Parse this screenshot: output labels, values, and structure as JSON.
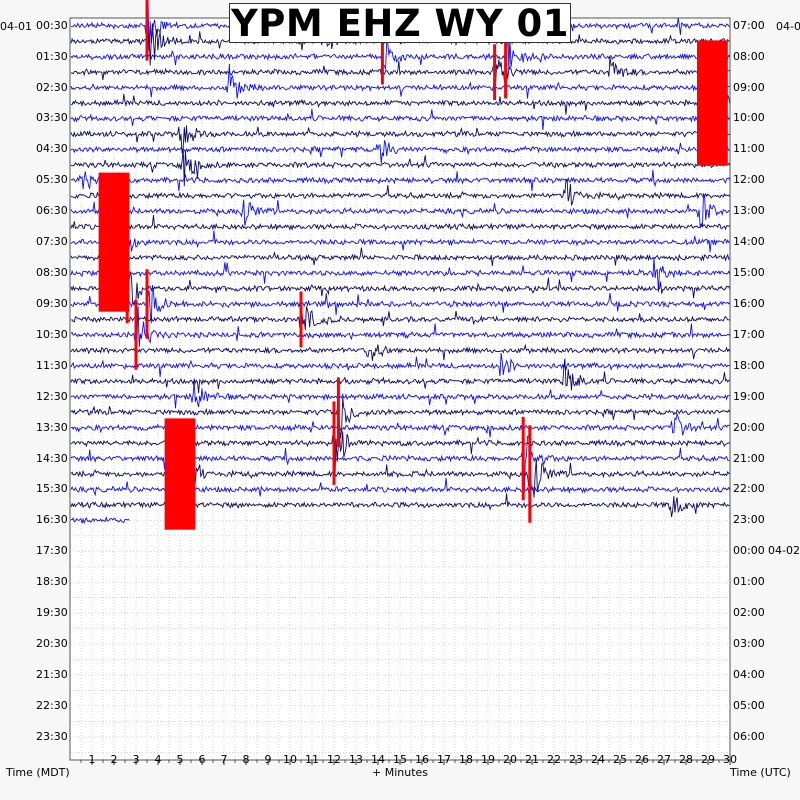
{
  "title": "YPM EHZ WY 01",
  "labels": {
    "left_date": "04-01",
    "right_date": "04-02",
    "left_axis_title": "Time (MDT)",
    "right_axis_title": "Time (UTC)",
    "x_axis_title": "+ Minutes"
  },
  "colors": {
    "trace_dark": "#0a0a66",
    "trace_blue": "#1010ee",
    "clip": "#ff0000",
    "grid": "#b8b8b8",
    "background": "#f7f7f7",
    "plot_background": "#ffffff"
  },
  "chart_data": {
    "type": "helicorder",
    "station": "YPM EHZ WY 01",
    "x_ticks": [
      "1",
      "2",
      "3",
      "4",
      "5",
      "6",
      "7",
      "8",
      "9",
      "10",
      "11",
      "12",
      "13",
      "14",
      "15",
      "16",
      "17",
      "18",
      "19",
      "20",
      "21",
      "22",
      "23",
      "24",
      "25",
      "26",
      "27",
      "28",
      "29",
      "30"
    ],
    "xlim": [
      0,
      30
    ],
    "left_hour_labels": [
      "00:30",
      "01:30",
      "02:30",
      "03:30",
      "04:30",
      "05:30",
      "06:30",
      "07:30",
      "08:30",
      "09:30",
      "10:30",
      "11:30",
      "12:30",
      "13:30",
      "14:30",
      "15:30",
      "16:30",
      "17:30",
      "18:30",
      "19:30",
      "20:30",
      "21:30",
      "22:30",
      "23:30"
    ],
    "right_hour_labels": [
      "07:00",
      "08:00",
      "09:00",
      "10:00",
      "11:00",
      "12:00",
      "13:00",
      "14:00",
      "15:00",
      "16:00",
      "17:00",
      "18:00",
      "19:00",
      "20:00",
      "21:00",
      "22:00",
      "23:00",
      "00:00",
      "01:00",
      "02:00",
      "03:00",
      "04:00",
      "05:00",
      "06:00"
    ],
    "trace_rows_total": 48,
    "trace_rows_filled": 33,
    "last_row_end_minute": 2.7,
    "events": [
      {
        "row": 0,
        "minute": 3.5,
        "amplitude": 2.5,
        "clipped": true
      },
      {
        "row": 1,
        "minute": 3.6,
        "amplitude": 2.5,
        "clipped": false
      },
      {
        "row": 1,
        "minute": 11.5,
        "amplitude": 1.5,
        "clipped": false
      },
      {
        "row": 2,
        "minute": 14.2,
        "amplitude": 2.0,
        "clipped": true
      },
      {
        "row": 2,
        "minute": 19.8,
        "amplitude": 3.0,
        "clipped": true
      },
      {
        "row": 3,
        "minute": 19.3,
        "amplitude": 2.0,
        "clipped": true
      },
      {
        "row": 3,
        "minute": 24.5,
        "amplitude": 1.5,
        "clipped": false
      },
      {
        "row": 4,
        "minute": 7.2,
        "amplitude": 2.0,
        "clipped": false
      },
      {
        "row": 5,
        "minute": 29.2,
        "amplitude": 4.5,
        "clipped": true
      },
      {
        "row": 7,
        "minute": 5.0,
        "amplitude": 2.0,
        "clipped": false
      },
      {
        "row": 8,
        "minute": 14.0,
        "amplitude": 1.5,
        "clipped": false
      },
      {
        "row": 9,
        "minute": 5.1,
        "amplitude": 2.0,
        "clipped": false
      },
      {
        "row": 10,
        "minute": 0.5,
        "amplitude": 1.2,
        "clipped": false
      },
      {
        "row": 11,
        "minute": 22.5,
        "amplitude": 1.5,
        "clipped": false
      },
      {
        "row": 12,
        "minute": 7.8,
        "amplitude": 1.5,
        "clipped": false
      },
      {
        "row": 12,
        "minute": 28.6,
        "amplitude": 2.0,
        "clipped": false
      },
      {
        "row": 14,
        "minute": 2.0,
        "amplitude": 5.0,
        "clipped": true
      },
      {
        "row": 16,
        "minute": 26.5,
        "amplitude": 1.2,
        "clipped": false
      },
      {
        "row": 17,
        "minute": 2.6,
        "amplitude": 2.5,
        "clipped": true
      },
      {
        "row": 18,
        "minute": 3.5,
        "amplitude": 2.5,
        "clipped": true
      },
      {
        "row": 19,
        "minute": 10.5,
        "amplitude": 2.0,
        "clipped": true
      },
      {
        "row": 20,
        "minute": 3.0,
        "amplitude": 2.5,
        "clipped": true
      },
      {
        "row": 21,
        "minute": 13.5,
        "amplitude": 1.5,
        "clipped": false
      },
      {
        "row": 22,
        "minute": 19.5,
        "amplitude": 1.2,
        "clipped": false
      },
      {
        "row": 23,
        "minute": 22.4,
        "amplitude": 2.0,
        "clipped": false
      },
      {
        "row": 24,
        "minute": 5.6,
        "amplitude": 1.5,
        "clipped": false
      },
      {
        "row": 25,
        "minute": 12.2,
        "amplitude": 2.5,
        "clipped": true
      },
      {
        "row": 26,
        "minute": 27.3,
        "amplitude": 2.0,
        "clipped": false
      },
      {
        "row": 27,
        "minute": 12.0,
        "amplitude": 3.0,
        "clipped": true
      },
      {
        "row": 28,
        "minute": 20.6,
        "amplitude": 3.0,
        "clipped": true
      },
      {
        "row": 29,
        "minute": 5.0,
        "amplitude": 4.0,
        "clipped": true
      },
      {
        "row": 29,
        "minute": 20.9,
        "amplitude": 3.5,
        "clipped": true
      },
      {
        "row": 31,
        "minute": 27.3,
        "amplitude": 1.5,
        "clipped": false
      }
    ]
  }
}
